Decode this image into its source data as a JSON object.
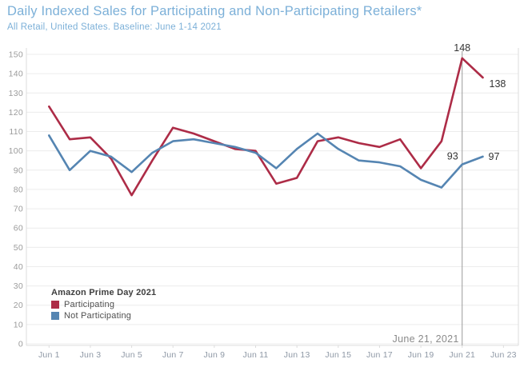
{
  "header": {
    "title": "Daily Indexed Sales for Participating and Non-Participating Retailers*",
    "subtitle": "All Retail, United States. Baseline: June 1-14 2021"
  },
  "colors": {
    "title_blue": "#7cb0d8",
    "participating_red": "#ad2c47",
    "not_participating_blue": "#5585b2",
    "gridline": "#ececec",
    "axis_line": "#dcdcdc",
    "y_tick_label": "#9b9b9b",
    "x_tick_label": "#8f99a6",
    "ref_line": "#9b9b9b",
    "data_label": "#343434",
    "annotation": "#8a8a8a"
  },
  "legend": {
    "title": "Amazon Prime Day 2021",
    "items": [
      {
        "label": "Participating",
        "color": "#ad2c47"
      },
      {
        "label": "Not Participating",
        "color": "#5585b2"
      }
    ]
  },
  "chart_data": {
    "type": "line",
    "x": [
      "Jun 1",
      "Jun 2",
      "Jun 3",
      "Jun 4",
      "Jun 5",
      "Jun 6",
      "Jun 7",
      "Jun 8",
      "Jun 9",
      "Jun 10",
      "Jun 11",
      "Jun 12",
      "Jun 13",
      "Jun 14",
      "Jun 15",
      "Jun 16",
      "Jun 17",
      "Jun 18",
      "Jun 19",
      "Jun 20",
      "Jun 21",
      "Jun 22"
    ],
    "x_tick_labels": [
      "Jun 1",
      "Jun 3",
      "Jun 5",
      "Jun 7",
      "Jun 9",
      "Jun 11",
      "Jun 13",
      "Jun 15",
      "Jun 17",
      "Jun 19",
      "Jun 21",
      "Jun 23"
    ],
    "y_ticks": [
      0,
      10,
      20,
      30,
      40,
      50,
      60,
      70,
      80,
      90,
      100,
      110,
      120,
      130,
      140,
      150
    ],
    "ylim": [
      0,
      150
    ],
    "grid": "horizontal",
    "legend_position": "inside-bottom-left",
    "series": [
      {
        "name": "Participating",
        "color": "#ad2c47",
        "values": [
          123,
          106,
          107,
          96,
          77,
          95,
          112,
          109,
          105,
          101,
          100,
          83,
          86,
          105,
          107,
          104,
          102,
          106,
          91,
          105,
          148,
          138
        ]
      },
      {
        "name": "Not Participating",
        "color": "#5585b2",
        "values": [
          108,
          90,
          100,
          97,
          89,
          99,
          105,
          106,
          104,
          102,
          99,
          91,
          101,
          109,
          101,
          95,
          94,
          92,
          85,
          81,
          93,
          97
        ]
      }
    ],
    "point_labels": [
      {
        "series": "Participating",
        "x": "Jun 21",
        "text": "148",
        "position": "above"
      },
      {
        "series": "Participating",
        "x": "Jun 22",
        "text": "138",
        "position": "below-right"
      },
      {
        "series": "Not Participating",
        "x": "Jun 21",
        "text": "93",
        "position": "above-left"
      },
      {
        "series": "Not Participating",
        "x": "Jun 22",
        "text": "97",
        "position": "right"
      }
    ],
    "ref_line": {
      "x": "Jun 21",
      "label": "June 21, 2021"
    }
  }
}
